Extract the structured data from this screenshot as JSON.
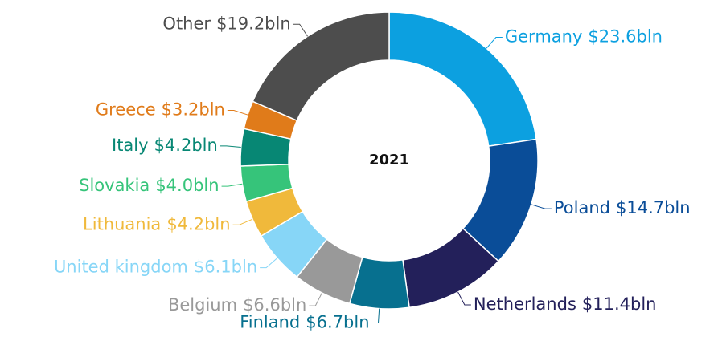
{
  "chart_data": {
    "type": "donut",
    "title": "2021",
    "categories": [
      "Germany",
      "Poland",
      "Netherlands",
      "Finland",
      "Belgium",
      "United kingdom",
      "Lithuania",
      "Slovakia",
      "Italy",
      "Greece",
      "Other"
    ],
    "values": [
      23.6,
      14.7,
      11.4,
      6.7,
      6.6,
      6.1,
      4.2,
      4.0,
      4.2,
      3.2,
      19.2
    ],
    "value_labels": [
      "$23.6bln",
      "$14.7bln",
      "$11.4bln",
      "$6.7bln",
      "$6.6bln",
      "$6.1bln",
      "$4.2bln",
      "$4.0bln",
      "$4.2bln",
      "$3.2bln",
      "$19.2bln"
    ],
    "colors": [
      "#0ca0e0",
      "#0a4d98",
      "#23205a",
      "#07708f",
      "#999999",
      "#87d6f7",
      "#f0b93b",
      "#36c47a",
      "#078774",
      "#e07b1a",
      "#4d4d4d"
    ]
  }
}
